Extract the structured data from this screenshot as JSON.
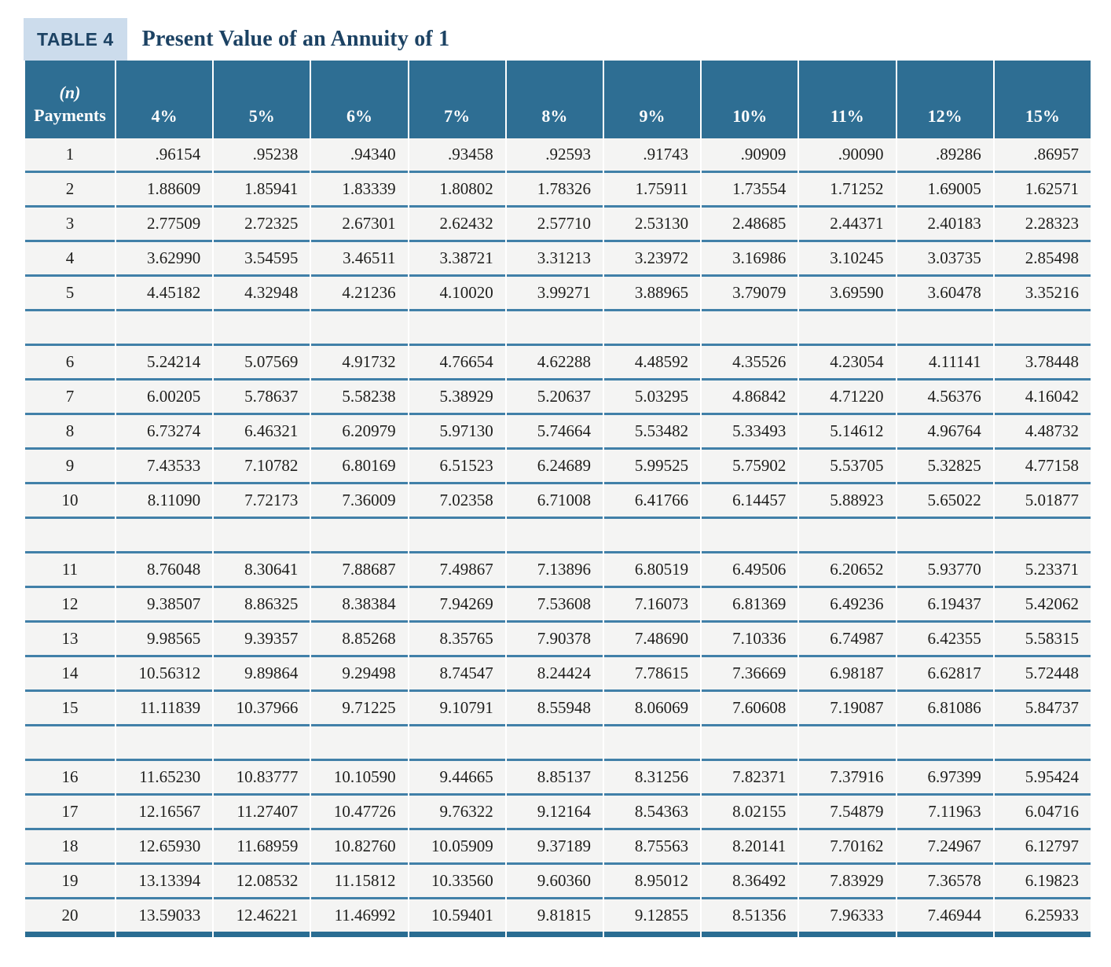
{
  "table": {
    "badge": "TABLE 4",
    "title": "Present Value of an Annuity of 1",
    "header": {
      "payments_top": "(n)",
      "payments_bottom": "Payments",
      "rates": [
        "4%",
        "5%",
        "6%",
        "7%",
        "8%",
        "9%",
        "10%",
        "11%",
        "12%",
        "15%"
      ]
    },
    "spacer_after": [
      5,
      10,
      15
    ],
    "rows": [
      {
        "n": 1,
        "values": [
          ".96154",
          ".95238",
          ".94340",
          ".93458",
          ".92593",
          ".91743",
          ".90909",
          ".90090",
          ".89286",
          ".86957"
        ]
      },
      {
        "n": 2,
        "values": [
          "1.88609",
          "1.85941",
          "1.83339",
          "1.80802",
          "1.78326",
          "1.75911",
          "1.73554",
          "1.71252",
          "1.69005",
          "1.62571"
        ]
      },
      {
        "n": 3,
        "values": [
          "2.77509",
          "2.72325",
          "2.67301",
          "2.62432",
          "2.57710",
          "2.53130",
          "2.48685",
          "2.44371",
          "2.40183",
          "2.28323"
        ]
      },
      {
        "n": 4,
        "values": [
          "3.62990",
          "3.54595",
          "3.46511",
          "3.38721",
          "3.31213",
          "3.23972",
          "3.16986",
          "3.10245",
          "3.03735",
          "2.85498"
        ]
      },
      {
        "n": 5,
        "values": [
          "4.45182",
          "4.32948",
          "4.21236",
          "4.10020",
          "3.99271",
          "3.88965",
          "3.79079",
          "3.69590",
          "3.60478",
          "3.35216"
        ]
      },
      {
        "n": 6,
        "values": [
          "5.24214",
          "5.07569",
          "4.91732",
          "4.76654",
          "4.62288",
          "4.48592",
          "4.35526",
          "4.23054",
          "4.11141",
          "3.78448"
        ]
      },
      {
        "n": 7,
        "values": [
          "6.00205",
          "5.78637",
          "5.58238",
          "5.38929",
          "5.20637",
          "5.03295",
          "4.86842",
          "4.71220",
          "4.56376",
          "4.16042"
        ]
      },
      {
        "n": 8,
        "values": [
          "6.73274",
          "6.46321",
          "6.20979",
          "5.97130",
          "5.74664",
          "5.53482",
          "5.33493",
          "5.14612",
          "4.96764",
          "4.48732"
        ]
      },
      {
        "n": 9,
        "values": [
          "7.43533",
          "7.10782",
          "6.80169",
          "6.51523",
          "6.24689",
          "5.99525",
          "5.75902",
          "5.53705",
          "5.32825",
          "4.77158"
        ]
      },
      {
        "n": 10,
        "values": [
          "8.11090",
          "7.72173",
          "7.36009",
          "7.02358",
          "6.71008",
          "6.41766",
          "6.14457",
          "5.88923",
          "5.65022",
          "5.01877"
        ]
      },
      {
        "n": 11,
        "values": [
          "8.76048",
          "8.30641",
          "7.88687",
          "7.49867",
          "7.13896",
          "6.80519",
          "6.49506",
          "6.20652",
          "5.93770",
          "5.23371"
        ]
      },
      {
        "n": 12,
        "values": [
          "9.38507",
          "8.86325",
          "8.38384",
          "7.94269",
          "7.53608",
          "7.16073",
          "6.81369",
          "6.49236",
          "6.19437",
          "5.42062"
        ]
      },
      {
        "n": 13,
        "values": [
          "9.98565",
          "9.39357",
          "8.85268",
          "8.35765",
          "7.90378",
          "7.48690",
          "7.10336",
          "6.74987",
          "6.42355",
          "5.58315"
        ]
      },
      {
        "n": 14,
        "values": [
          "10.56312",
          "9.89864",
          "9.29498",
          "8.74547",
          "8.24424",
          "7.78615",
          "7.36669",
          "6.98187",
          "6.62817",
          "5.72448"
        ]
      },
      {
        "n": 15,
        "values": [
          "11.11839",
          "10.37966",
          "9.71225",
          "9.10791",
          "8.55948",
          "8.06069",
          "7.60608",
          "7.19087",
          "6.81086",
          "5.84737"
        ]
      },
      {
        "n": 16,
        "values": [
          "11.65230",
          "10.83777",
          "10.10590",
          "9.44665",
          "8.85137",
          "8.31256",
          "7.82371",
          "7.37916",
          "6.97399",
          "5.95424"
        ]
      },
      {
        "n": 17,
        "values": [
          "12.16567",
          "11.27407",
          "10.47726",
          "9.76322",
          "9.12164",
          "8.54363",
          "8.02155",
          "7.54879",
          "7.11963",
          "6.04716"
        ]
      },
      {
        "n": 18,
        "values": [
          "12.65930",
          "11.68959",
          "10.82760",
          "10.05909",
          "9.37189",
          "8.75563",
          "8.20141",
          "7.70162",
          "7.24967",
          "6.12797"
        ]
      },
      {
        "n": 19,
        "values": [
          "13.13394",
          "12.08532",
          "11.15812",
          "10.33560",
          "9.60360",
          "8.95012",
          "8.36492",
          "7.83929",
          "7.36578",
          "6.19823"
        ]
      },
      {
        "n": 20,
        "values": [
          "13.59033",
          "12.46221",
          "11.46992",
          "10.59401",
          "9.81815",
          "9.12855",
          "8.51356",
          "7.96333",
          "7.46944",
          "6.25933"
        ]
      }
    ],
    "colors": {
      "header_bg": "#2e6e93",
      "row_bg": "#f4f4f3",
      "row_line": "#4180a8",
      "bottom_border": "#2a6d92",
      "badge_bg": "#ccdcec",
      "title_text": "#1c4263",
      "header_text": "#fdfdfd",
      "number_text": "#1e1e1c"
    }
  }
}
